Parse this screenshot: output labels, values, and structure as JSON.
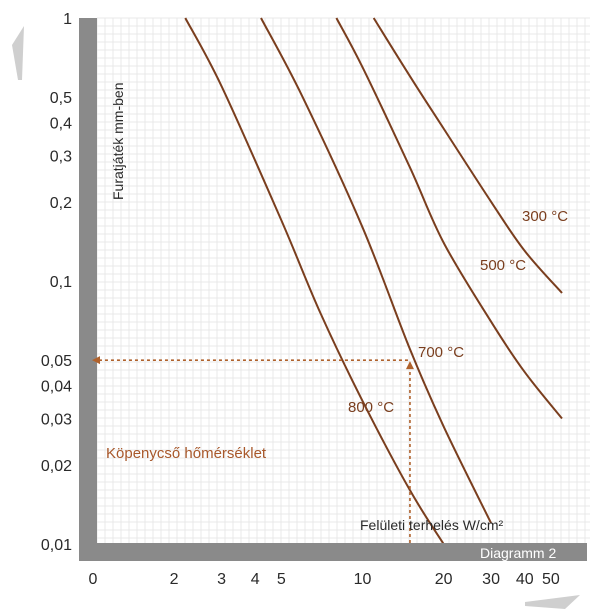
{
  "chart_data": {
    "type": "line",
    "title": "",
    "ylabel": "Furatjáték mm-ben",
    "xlabel": "Felületi terhelés W/cm²",
    "diagram_label": "Diagramm 2",
    "annotation": "Köpenycső hőmérséklet",
    "x_scale": "log",
    "y_scale": "log",
    "xlim": [
      1,
      60
    ],
    "ylim": [
      0.01,
      1
    ],
    "x_ticks": [
      {
        "value": 2,
        "label": "2"
      },
      {
        "value": 3,
        "label": "3"
      },
      {
        "value": 4,
        "label": "4"
      },
      {
        "value": 5,
        "label": "5"
      },
      {
        "value": 10,
        "label": "10"
      },
      {
        "value": 20,
        "label": "20"
      },
      {
        "value": 30,
        "label": "30"
      },
      {
        "value": 40,
        "label": "40"
      },
      {
        "value": 50,
        "label": "50"
      }
    ],
    "x_origin_label": "0",
    "y_ticks": [
      {
        "value": 1,
        "label": "1"
      },
      {
        "value": 0.5,
        "label": "0,5"
      },
      {
        "value": 0.4,
        "label": "0,4"
      },
      {
        "value": 0.3,
        "label": "0,3"
      },
      {
        "value": 0.2,
        "label": "0,2"
      },
      {
        "value": 0.1,
        "label": "0,1"
      },
      {
        "value": 0.05,
        "label": "0,05"
      },
      {
        "value": 0.04,
        "label": "0,04"
      },
      {
        "value": 0.03,
        "label": "0,03"
      },
      {
        "value": 0.02,
        "label": "0,02"
      },
      {
        "value": 0.01,
        "label": "0,01"
      }
    ],
    "grid": true,
    "series": [
      {
        "name": "800 °C",
        "x": [
          2.2,
          3,
          5,
          7,
          10,
          15,
          20
        ],
        "y": [
          1,
          0.55,
          0.17,
          0.075,
          0.035,
          0.016,
          0.01
        ]
      },
      {
        "name": "700 °C",
        "x": [
          4.2,
          6,
          10,
          15,
          20,
          30
        ],
        "y": [
          1,
          0.5,
          0.16,
          0.055,
          0.028,
          0.012
        ]
      },
      {
        "name": "500 °C",
        "x": [
          8,
          10,
          15,
          20,
          30,
          40,
          55
        ],
        "y": [
          1,
          0.65,
          0.27,
          0.14,
          0.07,
          0.045,
          0.03
        ]
      },
      {
        "name": "300 °C",
        "x": [
          11,
          15,
          20,
          30,
          40,
          55
        ],
        "y": [
          1,
          0.6,
          0.38,
          0.2,
          0.13,
          0.09
        ]
      }
    ],
    "reference": {
      "x": 15,
      "y": 0.05
    }
  },
  "colors": {
    "curve": "#7a3e1e",
    "reference": "#b0622c",
    "annotation": "#a8582b",
    "axis_bar": "#8a8a8a",
    "grid": "#e8e8e8",
    "text": "#2a2a2a"
  }
}
